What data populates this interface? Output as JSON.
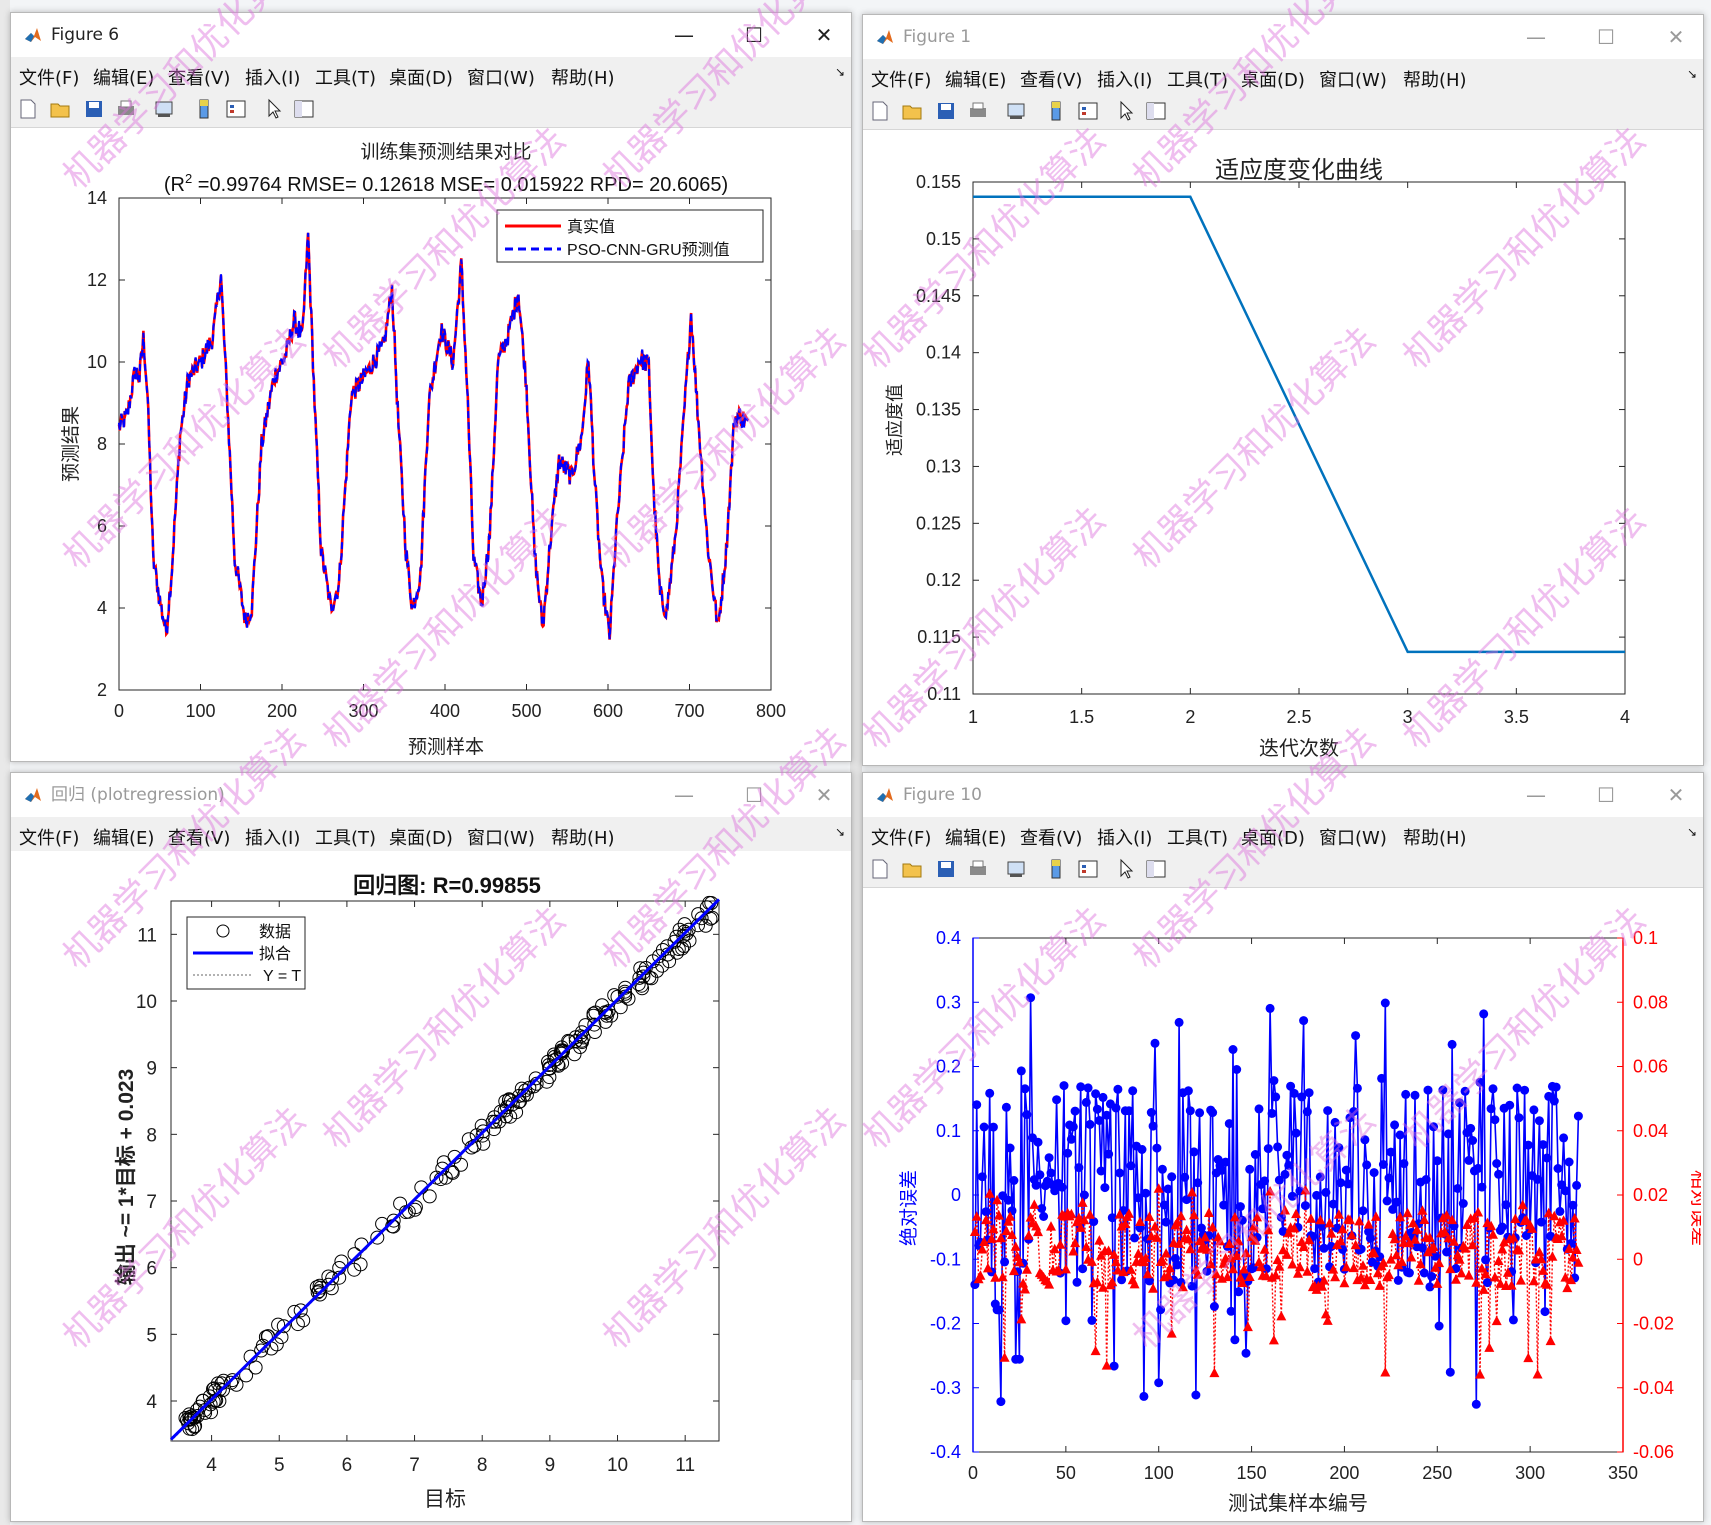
{
  "menu": [
    "文件(F)",
    "编辑(E)",
    "查看(V)",
    "插入(I)",
    "工具(T)",
    "桌面(D)",
    "窗口(W)",
    "帮助(H)"
  ],
  "watermark": "机器学习和优化算法",
  "windows": {
    "fig6": {
      "title": "Figure 6"
    },
    "fig1": {
      "title": "Figure 1"
    },
    "reg": {
      "title": "回归 (plotregression)"
    },
    "fig10": {
      "title": "Figure 10"
    }
  },
  "colors": {
    "red": "#ff0000",
    "blue": "#0000ff",
    "matlab_blue": "#0072bd",
    "fit": "#0000ff"
  },
  "chart_data": [
    {
      "id": "training",
      "type": "line",
      "title": "训练集预测结果对比",
      "subtitle": "(R² =0.99764 RMSE= 0.12618 MSE= 0.015922 RPD= 20.6065)",
      "subtitle_prefix": "(R",
      "subtitle_sup": "2",
      "subtitle_rest": " =0.99764 RMSE= 0.12618 MSE= 0.015922 RPD= 20.6065)",
      "xlabel": "预测样本",
      "ylabel": "预测结果",
      "xlim": [
        0,
        800
      ],
      "ylim": [
        2,
        14
      ],
      "xticks": [
        "0",
        "100",
        "200",
        "300",
        "400",
        "500",
        "600",
        "700",
        "800"
      ],
      "yticks": [
        "2",
        "4",
        "6",
        "8",
        "10",
        "12",
        "14"
      ],
      "legend_position": "top-right",
      "series": [
        {
          "name": "真实值",
          "color": "#ff0000"
        },
        {
          "name": "PSO-CNN-GRU预测值",
          "color": "#0000ff"
        }
      ],
      "keypoints": [
        [
          0,
          8.4
        ],
        [
          10,
          8.7
        ],
        [
          20,
          9.8
        ],
        [
          25,
          9.6
        ],
        [
          30,
          10.6
        ],
        [
          35,
          9.2
        ],
        [
          42,
          5.2
        ],
        [
          50,
          4.2
        ],
        [
          58,
          3.4
        ],
        [
          65,
          5.0
        ],
        [
          75,
          8.2
        ],
        [
          85,
          9.6
        ],
        [
          100,
          10.0
        ],
        [
          115,
          10.6
        ],
        [
          125,
          12.1
        ],
        [
          133,
          9.0
        ],
        [
          142,
          5.2
        ],
        [
          155,
          3.7
        ],
        [
          163,
          4.0
        ],
        [
          175,
          8.0
        ],
        [
          190,
          9.6
        ],
        [
          205,
          10.2
        ],
        [
          215,
          11.0
        ],
        [
          225,
          10.6
        ],
        [
          232,
          13.1
        ],
        [
          240,
          9.0
        ],
        [
          248,
          5.4
        ],
        [
          260,
          4.0
        ],
        [
          270,
          4.6
        ],
        [
          285,
          9.2
        ],
        [
          300,
          9.6
        ],
        [
          315,
          10.1
        ],
        [
          325,
          10.4
        ],
        [
          335,
          11.8
        ],
        [
          342,
          8.8
        ],
        [
          352,
          5.4
        ],
        [
          360,
          4.0
        ],
        [
          370,
          4.8
        ],
        [
          380,
          9.0
        ],
        [
          395,
          10.8
        ],
        [
          410,
          10.0
        ],
        [
          420,
          12.4
        ],
        [
          428,
          9.0
        ],
        [
          435,
          5.2
        ],
        [
          445,
          4.1
        ],
        [
          455,
          5.8
        ],
        [
          465,
          10.0
        ],
        [
          478,
          10.7
        ],
        [
          490,
          11.7
        ],
        [
          500,
          9.4
        ],
        [
          510,
          5.3
        ],
        [
          520,
          3.5
        ],
        [
          530,
          5.8
        ],
        [
          540,
          7.6
        ],
        [
          555,
          7.2
        ],
        [
          568,
          8.2
        ],
        [
          576,
          10.1
        ],
        [
          584,
          7.0
        ],
        [
          592,
          4.7
        ],
        [
          602,
          3.3
        ],
        [
          610,
          5.8
        ],
        [
          625,
          9.4
        ],
        [
          640,
          10.1
        ],
        [
          650,
          9.9
        ],
        [
          656,
          6.8
        ],
        [
          664,
          4.3
        ],
        [
          672,
          3.9
        ],
        [
          683,
          5.8
        ],
        [
          694,
          8.9
        ],
        [
          702,
          11.2
        ],
        [
          710,
          8.8
        ],
        [
          722,
          5.6
        ],
        [
          735,
          3.5
        ],
        [
          745,
          5.4
        ],
        [
          755,
          8.6
        ],
        [
          762,
          8.7
        ],
        [
          772,
          8.5
        ]
      ]
    },
    {
      "id": "fitness",
      "type": "line",
      "title": "适应度变化曲线",
      "xlabel": "迭代次数",
      "ylabel": "适应度值",
      "x": [
        1,
        2,
        3,
        4
      ],
      "y": [
        0.1537,
        0.1537,
        0.1137,
        0.1137
      ],
      "xlim": [
        1,
        4
      ],
      "ylim": [
        0.11,
        0.155
      ],
      "xticks": [
        "1",
        "1.5",
        "2",
        "2.5",
        "3",
        "3.5",
        "4"
      ],
      "yticks": [
        "0.11",
        "0.115",
        "0.12",
        "0.125",
        "0.13",
        "0.135",
        "0.14",
        "0.145",
        "0.15",
        "0.155"
      ],
      "color": "#0072bd"
    },
    {
      "id": "regression",
      "type": "scatter",
      "title": "回归图: R=0.99855",
      "xlabel": "目标",
      "ylabel": "输出 ~= 1*目标 + 0.023",
      "xlim": [
        3.4,
        11.5
      ],
      "ylim": [
        3.4,
        11.5
      ],
      "xticks": [
        "4",
        "5",
        "6",
        "7",
        "8",
        "9",
        "10",
        "11"
      ],
      "yticks": [
        "4",
        "5",
        "6",
        "7",
        "8",
        "9",
        "10",
        "11"
      ],
      "fit": {
        "slope": 1,
        "intercept": 0.023
      },
      "legend_position": "top-left",
      "legend": [
        "数据",
        "拟合",
        "Y = T"
      ],
      "n_points": 220
    },
    {
      "id": "errors",
      "type": "line",
      "xlabel": "测试集样本编号",
      "ylabel_left": "绝对误差",
      "ylabel_right": "相对误差",
      "xlim": [
        0,
        350
      ],
      "ylim_left": [
        -0.4,
        0.4
      ],
      "ylim_right": [
        -0.06,
        0.1
      ],
      "xticks": [
        "0",
        "50",
        "100",
        "150",
        "200",
        "250",
        "300",
        "350"
      ],
      "yticks_left": [
        "-0.4",
        "-0.3",
        "-0.2",
        "-0.1",
        "0",
        "0.1",
        "0.2",
        "0.3",
        "0.4"
      ],
      "yticks_right": [
        "-0.06",
        "-0.04",
        "-0.02",
        "0",
        "0.02",
        "0.04",
        "0.06",
        "0.08",
        "0.1"
      ],
      "n_samples": 326,
      "series": [
        {
          "name": "绝对误差",
          "color": "#0000ff",
          "marker": "circle"
        },
        {
          "name": "相对误差",
          "color": "#ff0000",
          "marker": "triangle"
        }
      ]
    }
  ]
}
